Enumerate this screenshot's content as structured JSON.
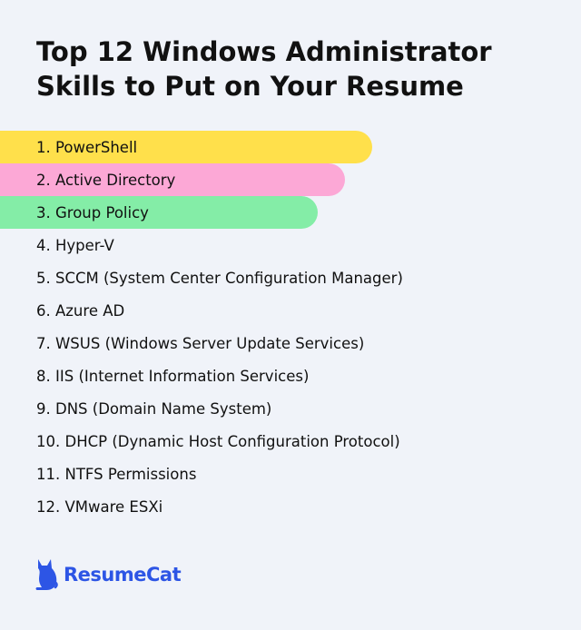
{
  "title": {
    "line1": "Top 12 Windows Administrator",
    "line2": "Skills to Put on Your Resume"
  },
  "skills": [
    "1. PowerShell",
    "2. Active Directory",
    "3. Group Policy",
    "4. Hyper-V",
    "5. SCCM (System Center Configuration Manager)",
    "6. Azure AD",
    "7. WSUS (Windows Server Update Services)",
    "8. IIS (Internet Information Services)",
    "9. DNS (Domain Name System)",
    "10. DHCP (Dynamic Host Configuration Protocol)",
    "11. NTFS Permissions",
    "12. VMware ESXi"
  ],
  "highlight_colors": [
    "#ffe04b",
    "#fca8d6",
    "#84eda7"
  ],
  "logo": {
    "text": "ResumeCat",
    "icon": "cat-icon",
    "color": "#2d55e5"
  }
}
